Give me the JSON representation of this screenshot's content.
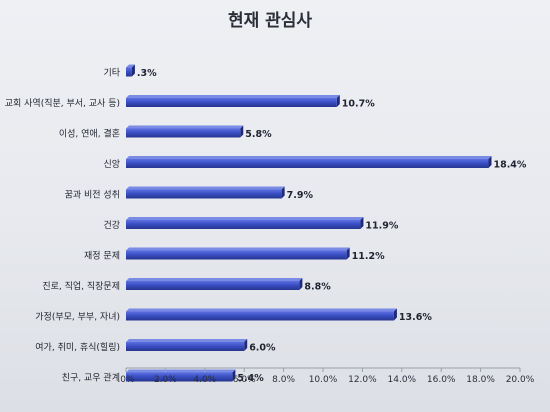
{
  "chart_data": {
    "type": "bar",
    "orientation": "horizontal",
    "title": "현재 관심사",
    "categories": [
      "기타",
      "교회 사역(직분, 부서, 교사 등)",
      "이성, 연애, 결혼",
      "신앙",
      "꿈과 비전 성취",
      "건강",
      "재정 문제",
      "진로, 직업, 직장문제",
      "가정(부모, 부부, 자녀)",
      "여가, 취미, 휴식(힐링)",
      "친구, 교우 관계"
    ],
    "values": [
      0.3,
      10.7,
      5.8,
      18.4,
      7.9,
      11.9,
      11.2,
      8.8,
      13.6,
      6.0,
      5.4
    ],
    "value_labels": [
      ".3%",
      "10.7%",
      "5.8%",
      "18.4%",
      "7.9%",
      "11.9%",
      "11.2%",
      "8.8%",
      "13.6%",
      "6.0%",
      "5.4%"
    ],
    "xlim": [
      0,
      20
    ],
    "xticks": [
      ".0%",
      "2.0%",
      "4.0%",
      "6.0%",
      "8.0%",
      "10.0%",
      "12.0%",
      "14.0%",
      "16.0%",
      "18.0%",
      "20.0%"
    ],
    "bar_color": "#3a4fc4",
    "grid": false,
    "legend": "none"
  }
}
